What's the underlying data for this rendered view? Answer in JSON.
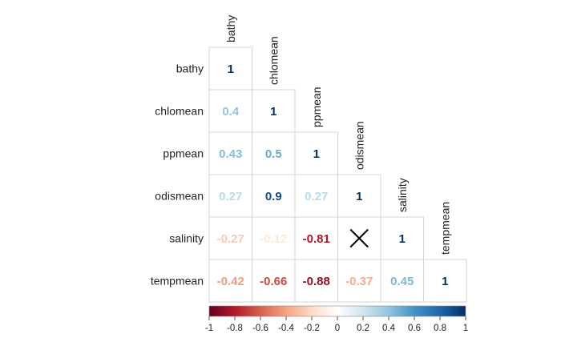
{
  "chart_data": {
    "type": "heatmap",
    "layout": "lower-triangle",
    "variables": [
      "bathy",
      "chlomean",
      "ppmean",
      "odismean",
      "salinity",
      "tempmean"
    ],
    "matrix": [
      [
        1,
        null,
        null,
        null,
        null,
        null
      ],
      [
        0.4,
        1,
        null,
        null,
        null,
        null
      ],
      [
        0.43,
        0.5,
        1,
        null,
        null,
        null
      ],
      [
        0.27,
        0.9,
        0.27,
        1,
        null,
        null
      ],
      [
        -0.27,
        -0.12,
        -0.81,
        "X",
        1,
        null
      ],
      [
        -0.42,
        -0.66,
        -0.88,
        -0.37,
        0.45,
        1
      ]
    ],
    "labels": [
      [
        "1",
        null,
        null,
        null,
        null,
        null
      ],
      [
        "0.4",
        "1",
        null,
        null,
        null,
        null
      ],
      [
        "0.43",
        "0.5",
        "1",
        null,
        null,
        null
      ],
      [
        "0.27",
        "0.9",
        "0.27",
        "1",
        null,
        null
      ],
      [
        "-0.27",
        "-0.12",
        "-0.81",
        null,
        "1",
        null
      ],
      [
        "-0.42",
        "-0.66",
        "-0.88",
        "-0.37",
        "0.45",
        "1"
      ]
    ],
    "not_significant_marker": "X",
    "colorbar": {
      "range": [
        -1,
        1
      ],
      "ticks": [
        "-1",
        "-0.8",
        "-0.6",
        "-0.4",
        "-0.2",
        "0",
        "0.2",
        "0.4",
        "0.6",
        "0.8",
        "1"
      ],
      "placement": "bottom",
      "colors": [
        "#67001F",
        "#B2182B",
        "#D6604D",
        "#F4A582",
        "#FDDBC7",
        "#FFFFFF",
        "#D1E5F0",
        "#92C5DE",
        "#4393C3",
        "#2166AC",
        "#053061"
      ]
    }
  }
}
